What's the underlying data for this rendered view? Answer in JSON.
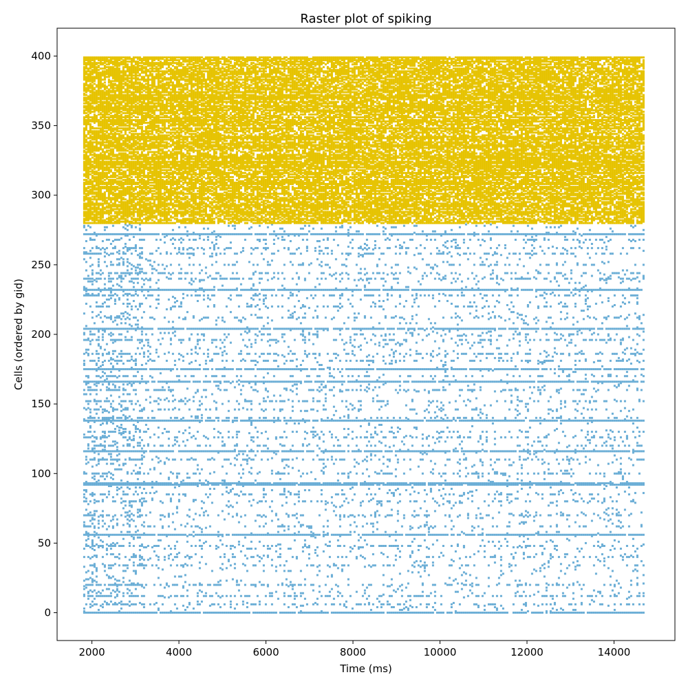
{
  "chart_data": {
    "type": "scatter",
    "subtype": "raster",
    "title": "Raster plot of spiking",
    "xlabel": "Time (ms)",
    "ylabel": "Cells (ordered by gid)",
    "xlim": [
      1200,
      15400
    ],
    "ylim": [
      -20,
      420
    ],
    "x_ticks": [
      2000,
      4000,
      6000,
      8000,
      10000,
      12000,
      14000
    ],
    "x_tick_labels": [
      "2000",
      "4000",
      "6000",
      "8000",
      "10000",
      "12000",
      "14000"
    ],
    "y_ticks": [
      0,
      50,
      100,
      150,
      200,
      250,
      300,
      350,
      400
    ],
    "y_tick_labels": [
      "0",
      "50",
      "100",
      "150",
      "200",
      "250",
      "300",
      "350",
      "400"
    ],
    "grid": false,
    "legend": "none",
    "time_range": [
      1800,
      14700
    ],
    "series": [
      {
        "cell_range": [
          0,
          279
        ],
        "color": "#6baed6",
        "rate_profile": "sparse",
        "dense_cells": [
          0,
          56,
          92,
          93,
          116,
          138,
          166,
          175,
          204,
          232,
          272
        ],
        "mid_cells": [
          6,
          12,
          20,
          34,
          40,
          48,
          62,
          70,
          80,
          85,
          100,
          110,
          120,
          126,
          130,
          140,
          146,
          152,
          160,
          170,
          181,
          186,
          196,
          200,
          212,
          220,
          228,
          240,
          244,
          250,
          258,
          262,
          268
        ]
      },
      {
        "cell_range": [
          280,
          399
        ],
        "color": "#e6c300",
        "rate_profile": "dense"
      }
    ]
  }
}
